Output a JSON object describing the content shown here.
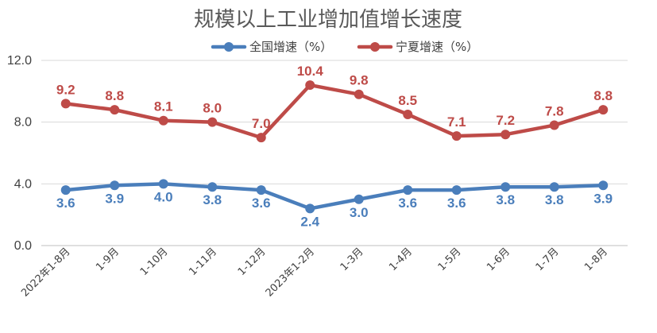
{
  "chart_data": {
    "type": "line",
    "title": "规模以上工业增加值增长速度",
    "categories": [
      "2022年1-8月",
      "1-9月",
      "1-10月",
      "1-11月",
      "1-12月",
      "2023年1-2月",
      "1-3月",
      "1-4月",
      "1-5月",
      "1-6月",
      "1-7月",
      "1-8月"
    ],
    "series": [
      {
        "name": "全国增速（%）",
        "color": "#4a7ebb",
        "values": [
          3.6,
          3.9,
          4.0,
          3.8,
          3.6,
          2.4,
          3.0,
          3.6,
          3.6,
          3.8,
          3.8,
          3.9
        ],
        "labels": [
          "3.6",
          "3.9",
          "4.0",
          "3.8",
          "3.6",
          "2.4",
          "3.0",
          "3.6",
          "3.6",
          "3.8",
          "3.8",
          "3.9"
        ]
      },
      {
        "name": "宁夏增速（%）",
        "color": "#be4b48",
        "values": [
          9.2,
          8.8,
          8.1,
          8.0,
          7.0,
          10.4,
          9.8,
          8.5,
          7.1,
          7.2,
          7.8,
          8.8
        ],
        "labels": [
          "9.2",
          "8.8",
          "8.1",
          "8.0",
          "7.0",
          "10.4",
          "9.8",
          "8.5",
          "7.1",
          "7.2",
          "7.8",
          "8.8"
        ]
      }
    ],
    "ylim": [
      0,
      12
    ],
    "yticks": [
      "0.0",
      "4.0",
      "8.0",
      "12.0"
    ],
    "ytick_values": [
      0,
      4,
      8,
      12
    ],
    "grid": true,
    "legend": "top"
  }
}
